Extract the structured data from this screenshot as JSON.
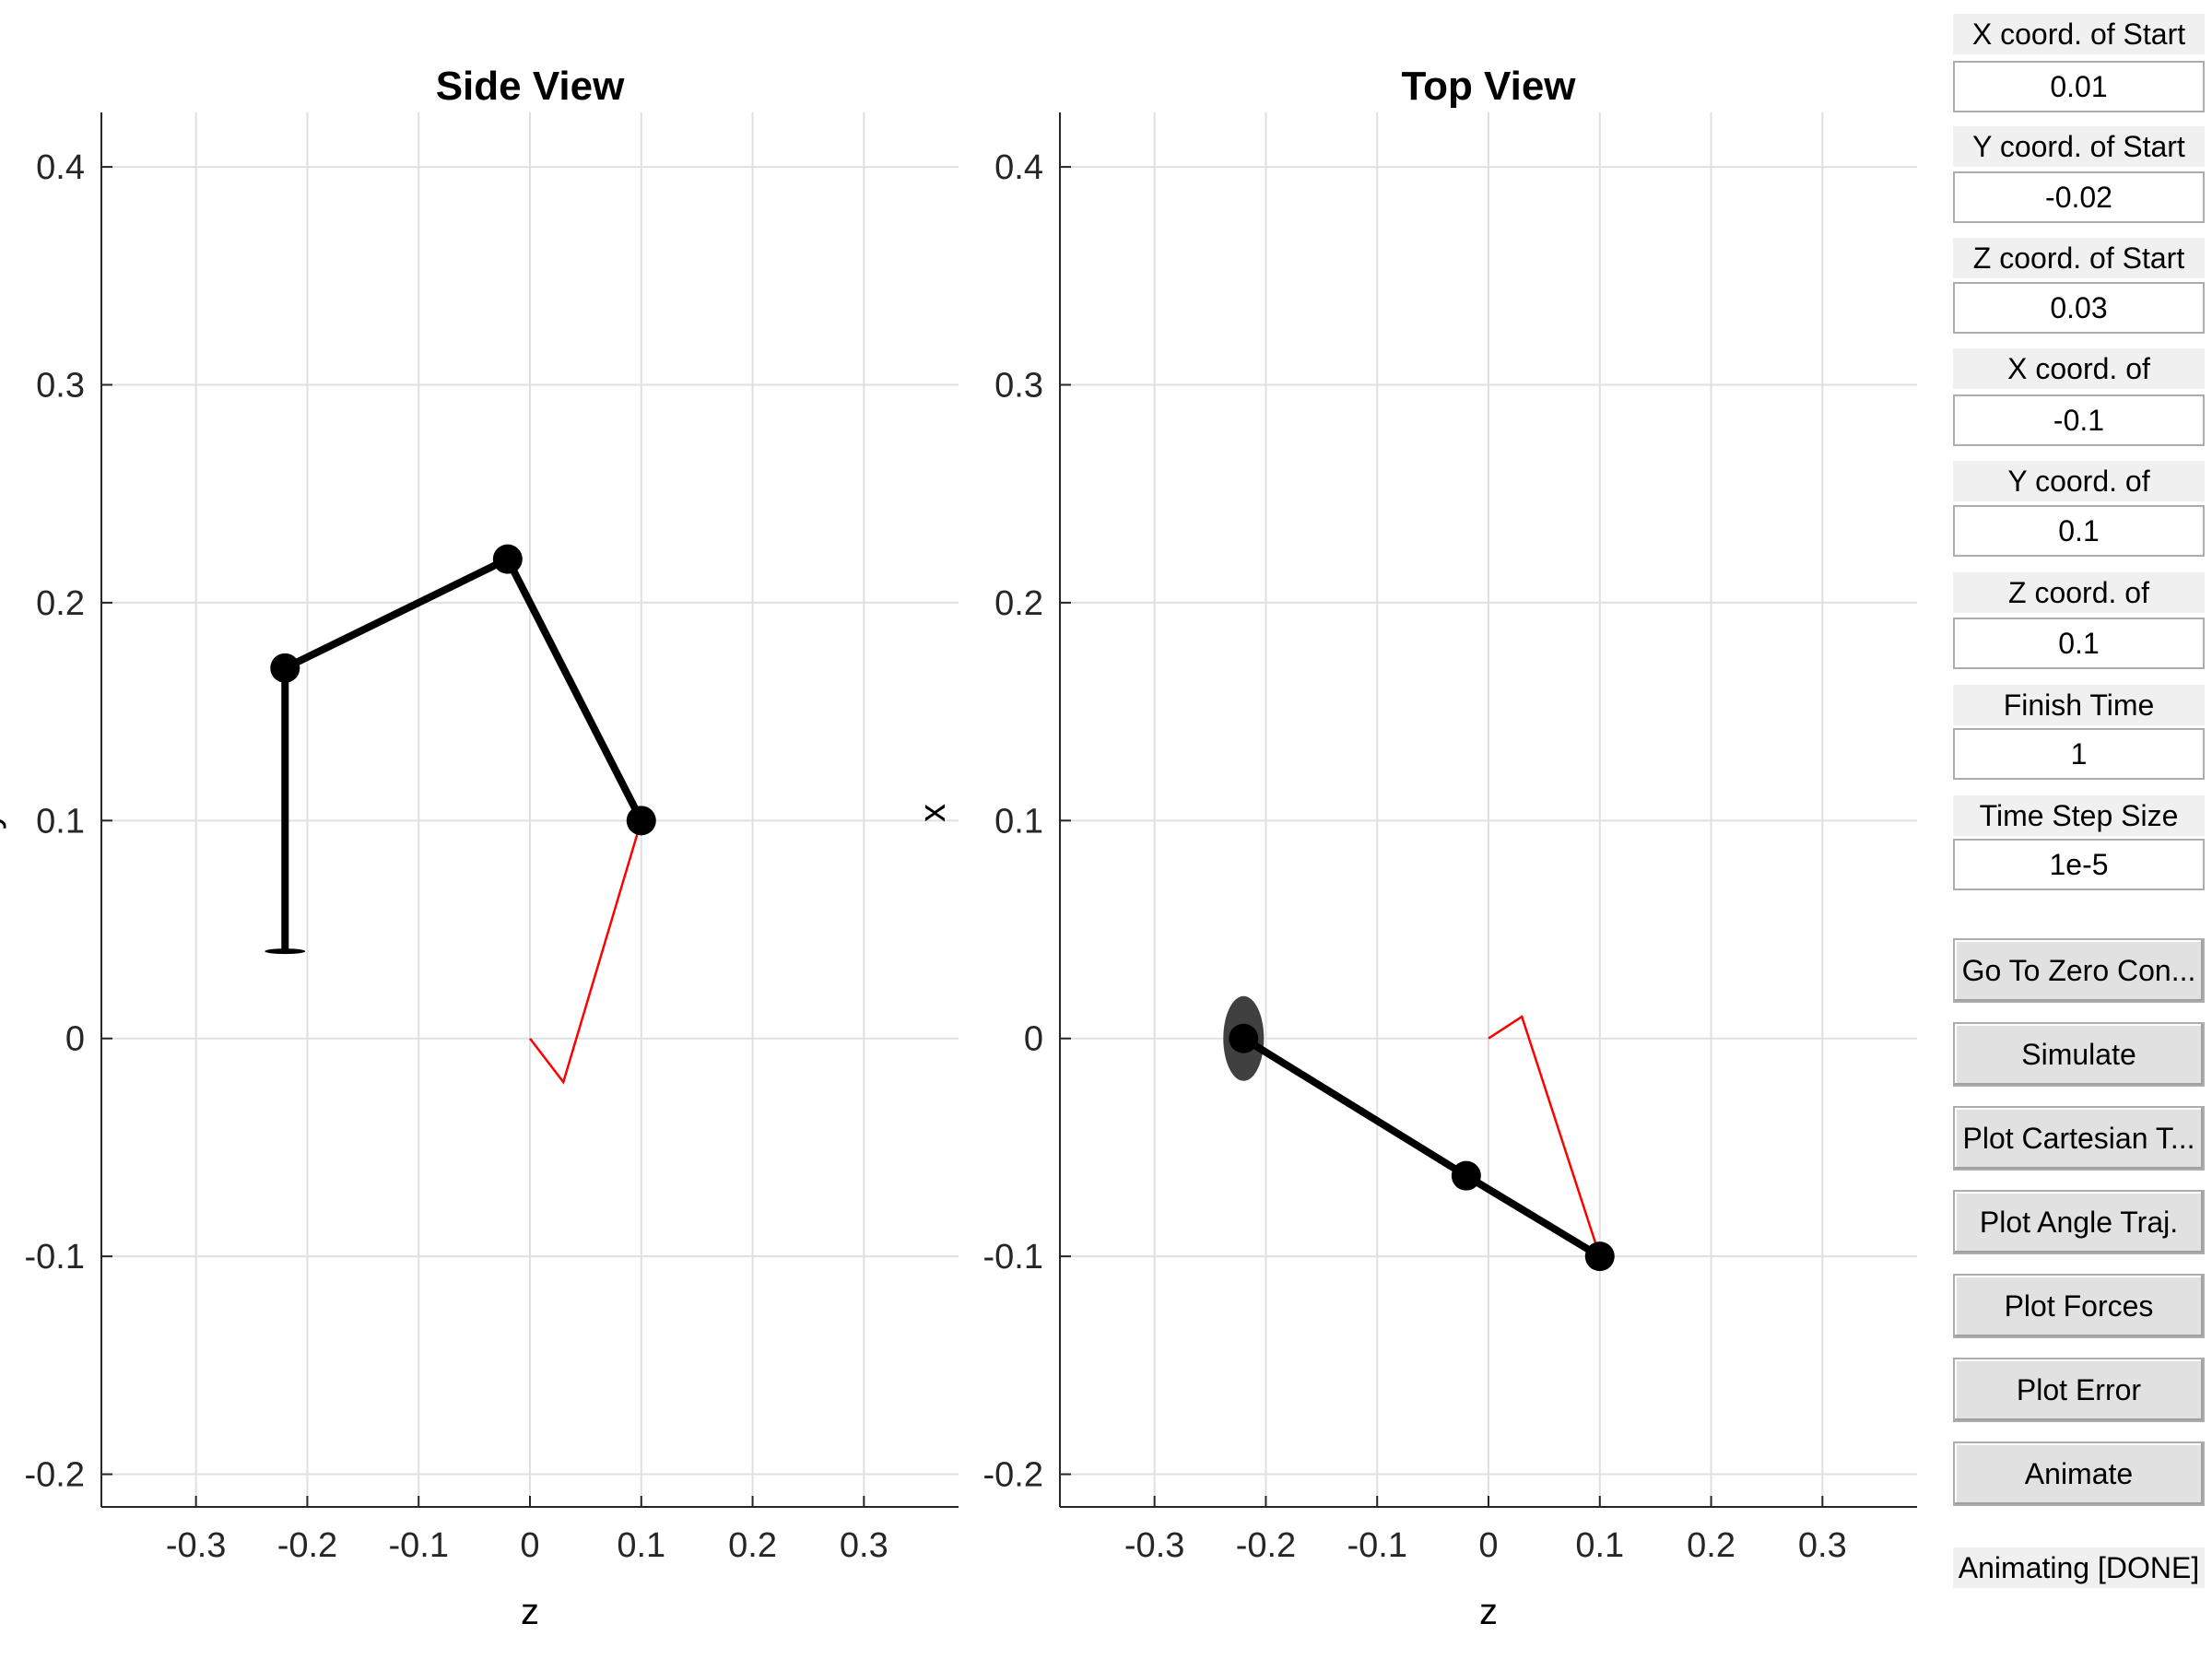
{
  "side_view": {
    "title": "Side View",
    "xlabel": "z",
    "ylabel": "y",
    "x_ticks": [
      "-0.3",
      "-0.2",
      "-0.1",
      "0",
      "0.1",
      "0.2",
      "0.3"
    ],
    "y_ticks": [
      "-0.2",
      "-0.1",
      "0",
      "0.1",
      "0.2",
      "0.3",
      "0.4"
    ]
  },
  "top_view": {
    "title": "Top View",
    "xlabel": "z",
    "ylabel": "x",
    "x_ticks": [
      "-0.3",
      "-0.2",
      "-0.1",
      "0",
      "0.1",
      "0.2",
      "0.3"
    ],
    "y_ticks": [
      "-0.2",
      "-0.1",
      "0",
      "0.1",
      "0.2",
      "0.3",
      "0.4"
    ]
  },
  "controls": {
    "x_start": {
      "label": "X coord. of Start",
      "value": "0.01"
    },
    "y_start": {
      "label": "Y coord. of Start",
      "value": "-0.02"
    },
    "z_start": {
      "label": "Z coord. of Start",
      "value": "0.03"
    },
    "x_end": {
      "label": "X coord. of",
      "value": "-0.1"
    },
    "y_end": {
      "label": "Y coord. of",
      "value": "0.1"
    },
    "z_end": {
      "label": "Z coord. of",
      "value": "0.1"
    },
    "finish_time": {
      "label": "Finish Time",
      "value": "1"
    },
    "time_step": {
      "label": "Time Step Size",
      "value": "1e-5"
    }
  },
  "buttons": {
    "zero_config": "Go To Zero Con...",
    "simulate": "Simulate",
    "plot_cartesian": "Plot Cartesian T...",
    "plot_angle": "Plot Angle Traj.",
    "plot_forces": "Plot Forces",
    "plot_error": "Plot Error",
    "animate": "Animate"
  },
  "status": "Animating [DONE]",
  "colors": {
    "link": "#000000",
    "trajectory": "#ff0000",
    "base": "#404040",
    "grid": "#e0e0e0"
  },
  "chart_data": [
    {
      "type": "line",
      "title": "Side View",
      "xlabel": "z",
      "ylabel": "y",
      "xlim": [
        -0.385,
        0.385
      ],
      "ylim": [
        -0.215,
        0.425
      ],
      "grid": true,
      "series": [
        {
          "x": [
            -0.22,
            -0.22,
            -0.02,
            0.1
          ],
          "y": [
            0.04,
            0.17,
            0.22,
            0.1
          ],
          "color": "#000000",
          "markers": [
            false,
            true,
            true,
            true
          ]
        },
        {
          "x": [
            0,
            0.03,
            0.1
          ],
          "y": [
            0,
            -0.02,
            0.1
          ],
          "color": "#ff0000"
        }
      ]
    },
    {
      "type": "line",
      "title": "Top View",
      "xlabel": "z",
      "ylabel": "x",
      "xlim": [
        -0.385,
        0.385
      ],
      "ylim": [
        -0.215,
        0.425
      ],
      "grid": true,
      "series": [
        {
          "x": [
            -0.22,
            -0.02,
            0.1
          ],
          "y": [
            0,
            -0.063,
            -0.1
          ],
          "color": "#000000",
          "markers": [
            true,
            true,
            true
          ]
        },
        {
          "x": [
            0,
            0.03,
            0.1
          ],
          "y": [
            0,
            0.01,
            -0.1
          ],
          "color": "#ff0000"
        }
      ]
    }
  ]
}
